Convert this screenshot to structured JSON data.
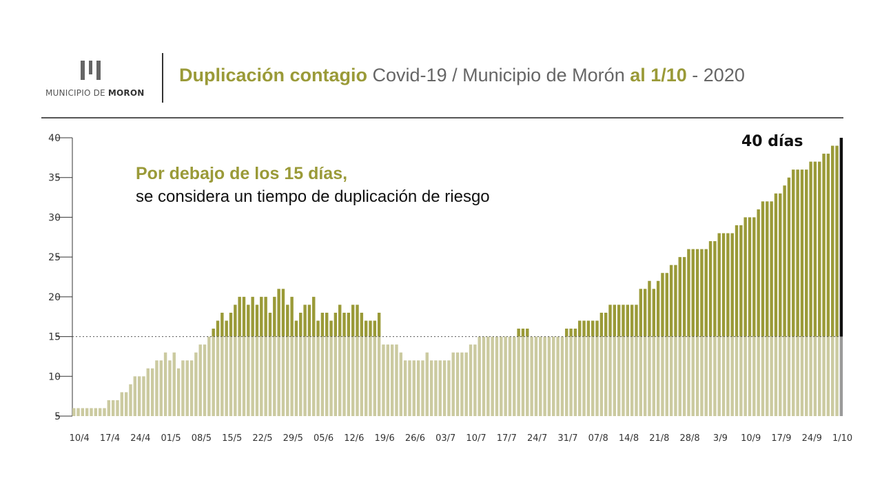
{
  "brand": {
    "logo_prefix": "MUNICIPIO DE",
    "logo_name": "MORON",
    "accent": "#9a9a38",
    "accent_light": "#cbcaa0",
    "last_bar_dark": "#111111",
    "last_bar_light": "#9a9a9a"
  },
  "header": {
    "title_bold_1": "Duplicación contagio",
    "title_regular_1": " Covid-19 / Municipio de Morón ",
    "title_bold_2": "al 1/10",
    "title_regular_2": " - 2020"
  },
  "annotation": {
    "line1": "Por debajo de los 15 días,",
    "line2": "se considera un tiempo de duplicación de riesgo"
  },
  "chart_data": {
    "type": "bar",
    "threshold": 15,
    "ylim": [
      5,
      40
    ],
    "yticks": [
      5,
      10,
      15,
      20,
      25,
      30,
      35,
      40
    ],
    "xtick_labels": [
      "10/4",
      "17/4",
      "24/4",
      "01/5",
      "08/5",
      "15/5",
      "22/5",
      "29/5",
      "05/6",
      "12/6",
      "19/6",
      "26/6",
      "03/7",
      "10/7",
      "17/7",
      "24/7",
      "31/7",
      "07/8",
      "14/8",
      "21/8",
      "28/8",
      "3/9",
      "10/9",
      "17/9",
      "24/9",
      "1/10"
    ],
    "last_value_label": "40 días",
    "values": [
      6,
      6,
      6,
      6,
      6,
      6,
      6,
      6,
      7,
      7,
      7,
      8,
      8,
      9,
      10,
      10,
      10,
      11,
      11,
      12,
      12,
      13,
      12,
      13,
      11,
      12,
      12,
      12,
      13,
      14,
      14,
      15,
      16,
      17,
      18,
      17,
      18,
      19,
      20,
      20,
      19,
      20,
      19,
      20,
      20,
      18,
      20,
      21,
      21,
      19,
      20,
      17,
      18,
      19,
      19,
      20,
      17,
      18,
      18,
      17,
      18,
      19,
      18,
      18,
      19,
      19,
      18,
      17,
      17,
      17,
      18,
      14,
      14,
      14,
      14,
      13,
      12,
      12,
      12,
      12,
      12,
      13,
      12,
      12,
      12,
      12,
      12,
      13,
      13,
      13,
      13,
      14,
      14,
      15,
      15,
      15,
      15,
      15,
      15,
      15,
      15,
      15,
      16,
      16,
      16,
      15,
      15,
      15,
      15,
      15,
      15,
      15,
      15,
      16,
      16,
      16,
      17,
      17,
      17,
      17,
      17,
      18,
      18,
      19,
      19,
      19,
      19,
      19,
      19,
      19,
      21,
      21,
      22,
      21,
      22,
      23,
      23,
      24,
      24,
      25,
      25,
      26,
      26,
      26,
      26,
      26,
      27,
      27,
      28,
      28,
      28,
      28,
      29,
      29,
      30,
      30,
      30,
      31,
      32,
      32,
      32,
      33,
      33,
      34,
      35,
      36,
      36,
      36,
      36,
      37,
      37,
      37,
      38,
      38,
      39,
      39,
      40
    ]
  }
}
